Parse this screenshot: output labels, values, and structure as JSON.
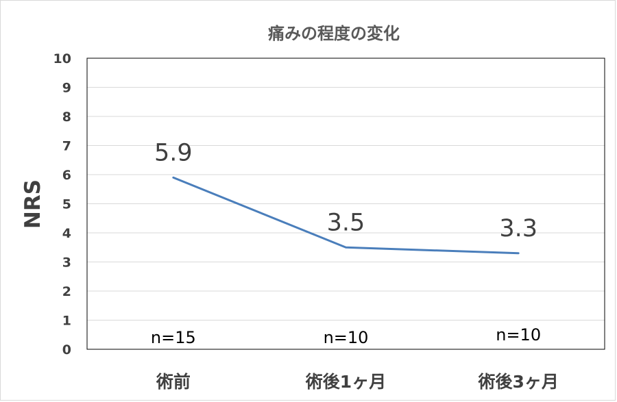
{
  "chart_data": {
    "type": "line",
    "title": "痛みの程度の変化",
    "xlabel": "",
    "ylabel": "NRS",
    "categories": [
      "術前",
      "術後1ヶ月",
      "術後3ヶ月"
    ],
    "series": [
      {
        "values": [
          5.9,
          3.5,
          3.3
        ],
        "color": "#4a7ebb"
      }
    ],
    "data_labels": [
      "5.9",
      "3.5",
      "3.3"
    ],
    "annotations": [
      "n=15",
      "n=10",
      "n=10"
    ],
    "yticks": [
      "0",
      "1",
      "2",
      "3",
      "4",
      "5",
      "6",
      "7",
      "8",
      "9",
      "10"
    ],
    "ylim": [
      0,
      10
    ],
    "grid": true,
    "legend": "none"
  }
}
